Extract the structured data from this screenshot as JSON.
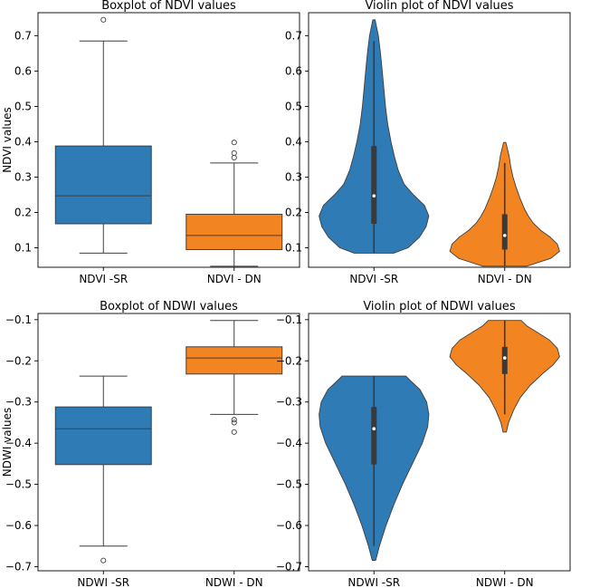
{
  "chart_data": [
    {
      "type": "box",
      "title": "Boxplot of NDVI values",
      "xlabel": "",
      "ylabel": "NDVI values",
      "ylim": [
        0.045,
        0.765
      ],
      "yticks": [
        0.1,
        0.2,
        0.3,
        0.4,
        0.5,
        0.6,
        0.7
      ],
      "categories": [
        "NDVI -SR",
        "NDVI - DN"
      ],
      "colors": [
        "#2f7bb6",
        "#f28522"
      ],
      "boxes": [
        {
          "whislo": 0.085,
          "q1": 0.168,
          "med": 0.247,
          "q3": 0.388,
          "whishi": 0.685,
          "fliers": [
            0.745
          ]
        },
        {
          "whislo": 0.048,
          "q1": 0.095,
          "med": 0.135,
          "q3": 0.195,
          "whishi": 0.34,
          "fliers": [
            0.355,
            0.368,
            0.398
          ]
        }
      ]
    },
    {
      "type": "violin",
      "title": "Violin plot of NDVI values",
      "xlabel": "",
      "ylabel": "",
      "ylim": [
        0.045,
        0.765
      ],
      "yticks": [
        0.1,
        0.2,
        0.3,
        0.4,
        0.5,
        0.6,
        0.7
      ],
      "categories": [
        "NDVI -SR",
        "NDVI - DN"
      ],
      "colors": [
        "#2f7bb6",
        "#f28522"
      ],
      "violins": [
        {
          "min": 0.085,
          "max": 0.745,
          "q1": 0.168,
          "med": 0.247,
          "q3": 0.388,
          "whislo": 0.085,
          "whishi": 0.685,
          "profile": [
            [
              0.085,
              0.36
            ],
            [
              0.1,
              0.62
            ],
            [
              0.13,
              0.83
            ],
            [
              0.16,
              0.95
            ],
            [
              0.19,
              1.0
            ],
            [
              0.22,
              0.92
            ],
            [
              0.25,
              0.72
            ],
            [
              0.28,
              0.55
            ],
            [
              0.32,
              0.44
            ],
            [
              0.36,
              0.37
            ],
            [
              0.4,
              0.31
            ],
            [
              0.45,
              0.25
            ],
            [
              0.5,
              0.21
            ],
            [
              0.55,
              0.18
            ],
            [
              0.6,
              0.15
            ],
            [
              0.65,
              0.12
            ],
            [
              0.7,
              0.08
            ],
            [
              0.745,
              0.02
            ]
          ]
        },
        {
          "min": 0.048,
          "max": 0.398,
          "q1": 0.095,
          "med": 0.135,
          "q3": 0.195,
          "whislo": 0.048,
          "whishi": 0.34,
          "profile": [
            [
              0.048,
              0.4
            ],
            [
              0.07,
              0.84
            ],
            [
              0.09,
              1.0
            ],
            [
              0.11,
              0.96
            ],
            [
              0.13,
              0.83
            ],
            [
              0.15,
              0.65
            ],
            [
              0.17,
              0.52
            ],
            [
              0.19,
              0.43
            ],
            [
              0.21,
              0.36
            ],
            [
              0.24,
              0.28
            ],
            [
              0.27,
              0.21
            ],
            [
              0.3,
              0.15
            ],
            [
              0.33,
              0.11
            ],
            [
              0.36,
              0.08
            ],
            [
              0.398,
              0.02
            ]
          ]
        }
      ]
    },
    {
      "type": "box",
      "title": "Boxplot of NDWI values",
      "xlabel": "",
      "ylabel": "NDWI values",
      "ylim": [
        -0.71,
        -0.085
      ],
      "yticks": [
        -0.1,
        -0.2,
        -0.3,
        -0.4,
        -0.5,
        -0.6,
        -0.7
      ],
      "categories": [
        "NDWI -SR",
        "NDWI - DN"
      ],
      "colors": [
        "#2f7bb6",
        "#f28522"
      ],
      "boxes": [
        {
          "whislo": -0.65,
          "q1": -0.452,
          "med": -0.365,
          "q3": -0.312,
          "whishi": -0.237,
          "fliers": [
            -0.685
          ]
        },
        {
          "whislo": -0.33,
          "q1": -0.232,
          "med": -0.193,
          "q3": -0.166,
          "whishi": -0.102,
          "fliers": [
            -0.343,
            -0.35,
            -0.373
          ]
        }
      ]
    },
    {
      "type": "violin",
      "title": "Violin plot of NDWI values",
      "xlabel": "",
      "ylabel": "",
      "ylim": [
        -0.71,
        -0.085
      ],
      "yticks": [
        -0.1,
        -0.2,
        -0.3,
        -0.4,
        -0.5,
        -0.6,
        -0.7
      ],
      "categories": [
        "NDWI -SR",
        "NDWI - DN"
      ],
      "colors": [
        "#2f7bb6",
        "#f28522"
      ],
      "violins": [
        {
          "min": -0.685,
          "max": -0.237,
          "q1": -0.452,
          "med": -0.365,
          "q3": -0.312,
          "whislo": -0.65,
          "whishi": -0.237,
          "profile": [
            [
              -0.685,
              0.03
            ],
            [
              -0.65,
              0.1
            ],
            [
              -0.6,
              0.22
            ],
            [
              -0.55,
              0.36
            ],
            [
              -0.5,
              0.52
            ],
            [
              -0.45,
              0.7
            ],
            [
              -0.4,
              0.88
            ],
            [
              -0.36,
              0.98
            ],
            [
              -0.33,
              1.0
            ],
            [
              -0.3,
              0.96
            ],
            [
              -0.27,
              0.84
            ],
            [
              -0.25,
              0.68
            ],
            [
              -0.237,
              0.58
            ]
          ]
        },
        {
          "min": -0.373,
          "max": -0.102,
          "q1": -0.232,
          "med": -0.193,
          "q3": -0.166,
          "whislo": -0.33,
          "whishi": -0.102,
          "profile": [
            [
              -0.373,
              0.03
            ],
            [
              -0.35,
              0.07
            ],
            [
              -0.32,
              0.16
            ],
            [
              -0.29,
              0.28
            ],
            [
              -0.26,
              0.46
            ],
            [
              -0.23,
              0.7
            ],
            [
              -0.21,
              0.88
            ],
            [
              -0.19,
              1.0
            ],
            [
              -0.17,
              0.96
            ],
            [
              -0.15,
              0.82
            ],
            [
              -0.13,
              0.58
            ],
            [
              -0.115,
              0.4
            ],
            [
              -0.102,
              0.3
            ]
          ]
        }
      ]
    }
  ]
}
